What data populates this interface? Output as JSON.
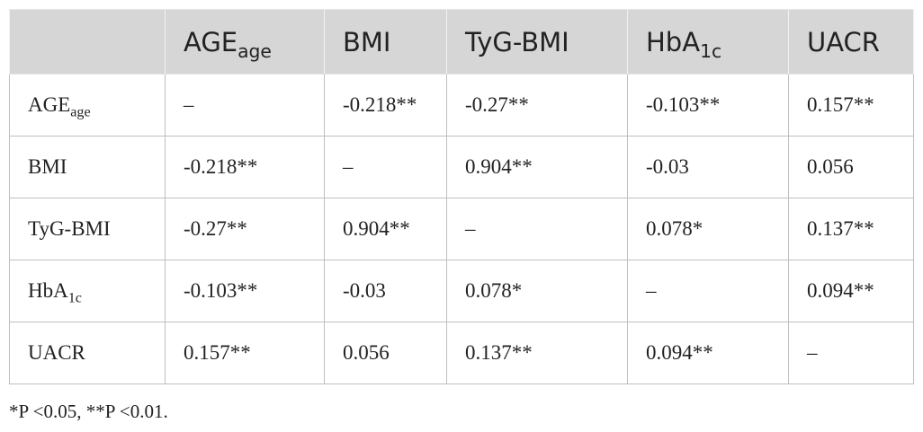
{
  "table": {
    "header": [
      {
        "text": "AGE",
        "sub": "age"
      },
      {
        "text": "BMI"
      },
      {
        "text": "TyG-BMI"
      },
      {
        "text": "HbA",
        "sub": "1c"
      },
      {
        "text": "UACR"
      }
    ],
    "rows": [
      {
        "label": {
          "text": "AGE",
          "sub": "age"
        },
        "cells": [
          "–",
          "-0.218**",
          "-0.27**",
          "-0.103**",
          "0.157**"
        ]
      },
      {
        "label": {
          "text": "BMI"
        },
        "cells": [
          "-0.218**",
          "–",
          "0.904**",
          "-0.03",
          "0.056"
        ]
      },
      {
        "label": {
          "text": "TyG-BMI"
        },
        "cells": [
          "-0.27**",
          "0.904**",
          "–",
          "0.078*",
          "0.137**"
        ]
      },
      {
        "label": {
          "text": "HbA",
          "sub": "1c"
        },
        "cells": [
          "-0.103**",
          "-0.03",
          "0.078*",
          "–",
          "0.094**"
        ]
      },
      {
        "label": {
          "text": "UACR"
        },
        "cells": [
          "0.157**",
          "0.056",
          "0.137**",
          "0.094**",
          "–"
        ]
      }
    ]
  },
  "footnote": "*P <0.05, **P <0.01."
}
